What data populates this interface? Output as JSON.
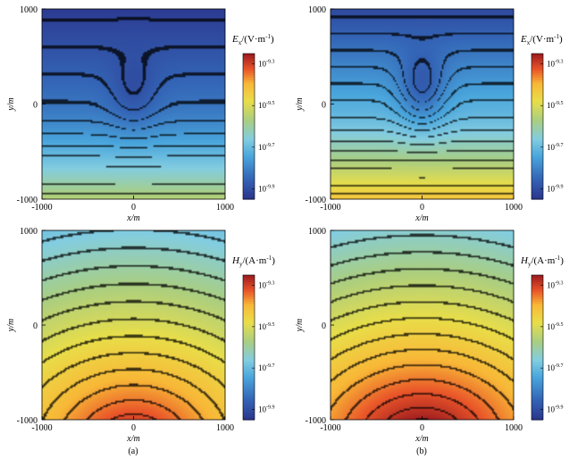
{
  "panel_labels": [
    "(a)",
    "(b)"
  ],
  "chart_data": [
    {
      "type": "heatmap",
      "panel": "(a)",
      "quantity": "Ex",
      "xlabel": "x/m",
      "ylabel": "y/m",
      "x_ticks": [
        "-1000",
        "0",
        "1000"
      ],
      "y_ticks": [
        "-1000",
        "0",
        "1000"
      ],
      "xlim": [
        -1000,
        1000
      ],
      "ylim": [
        -1000,
        1000
      ],
      "colorbar": {
        "symbol": "E",
        "subscript": "x",
        "unit": "/(V·m",
        "unit_exp": "-1",
        "unit_close": ")",
        "ticks": [
          "10",
          "10",
          "10",
          "10"
        ],
        "tick_exps": [
          "-9.3",
          "-9.5",
          "-9.7",
          "-9.9"
        ],
        "log_range": [
          -9.95,
          -9.25
        ]
      },
      "contour_lines": 22,
      "field_description": "minimum along x=0 dip (field weakens toward top)",
      "log_value_samples": {
        "top_edge": -9.93,
        "center": -9.82,
        "bottom_edge": -9.55,
        "dip_x0_y300": -9.9
      }
    },
    {
      "type": "heatmap",
      "panel": "(b)",
      "quantity": "Ex",
      "xlabel": "x/m",
      "ylabel": "y/m",
      "x_ticks": [
        "-1000",
        "0",
        "1000"
      ],
      "y_ticks": [
        "-1000",
        "0",
        "1000"
      ],
      "xlim": [
        -1000,
        1000
      ],
      "ylim": [
        -1000,
        1000
      ],
      "colorbar": {
        "symbol": "E",
        "subscript": "x",
        "unit": "/(V·m",
        "unit_exp": "-1",
        "unit_close": ")",
        "ticks": [
          "10",
          "10",
          "10",
          "10"
        ],
        "tick_exps": [
          "-9.3",
          "-9.5",
          "-9.7",
          "-9.9"
        ],
        "log_range": [
          -9.95,
          -9.25
        ]
      },
      "contour_lines": 22,
      "field_description": "same pattern with stronger field near bottom",
      "log_value_samples": {
        "top_edge": -9.9,
        "center": -9.72,
        "bottom_edge": -9.42,
        "dip_x0_y300": -9.88
      }
    },
    {
      "type": "heatmap",
      "panel": "(a)",
      "quantity": "Hy",
      "xlabel": "x/m",
      "ylabel": "y/m",
      "x_ticks": [
        "-1000",
        "0",
        "1000"
      ],
      "y_ticks": [
        "-1000",
        "0",
        "1000"
      ],
      "xlim": [
        -1000,
        1000
      ],
      "ylim": [
        -1000,
        1000
      ],
      "colorbar": {
        "symbol": "H",
        "subscript": "y",
        "unit": "/(A·m",
        "unit_exp": "-1",
        "unit_close": ")",
        "ticks": [
          "10",
          "10",
          "10",
          "10"
        ],
        "tick_exps": [
          "-9.3",
          "-9.5",
          "-9.7",
          "-9.9"
        ],
        "log_range": [
          -9.95,
          -9.25
        ]
      },
      "contour_lines": 22,
      "field_description": "concentric arcs centred below the bottom edge",
      "log_value_samples": {
        "top_edge": -9.68,
        "center": -9.5,
        "bottom_edge": -9.3
      }
    },
    {
      "type": "heatmap",
      "panel": "(b)",
      "quantity": "Hy",
      "xlabel": "x/m",
      "ylabel": "y/m",
      "x_ticks": [
        "-1000",
        "0",
        "1000"
      ],
      "y_ticks": [
        "-1000",
        "0",
        "1000"
      ],
      "xlim": [
        -1000,
        1000
      ],
      "ylim": [
        -1000,
        1000
      ],
      "colorbar": {
        "symbol": "H",
        "subscript": "y",
        "unit": "/(A·m",
        "unit_exp": "-1",
        "unit_close": ")",
        "ticks": [
          "10",
          "10",
          "10",
          "10"
        ],
        "tick_exps": [
          "-9.3",
          "-9.5",
          "-9.7",
          "-9.9"
        ],
        "log_range": [
          -9.95,
          -9.25
        ]
      },
      "contour_lines": 22,
      "field_description": "concentric arcs, slightly stronger near bottom",
      "log_value_samples": {
        "top_edge": -9.66,
        "center": -9.47,
        "bottom_edge": -9.25
      }
    }
  ]
}
